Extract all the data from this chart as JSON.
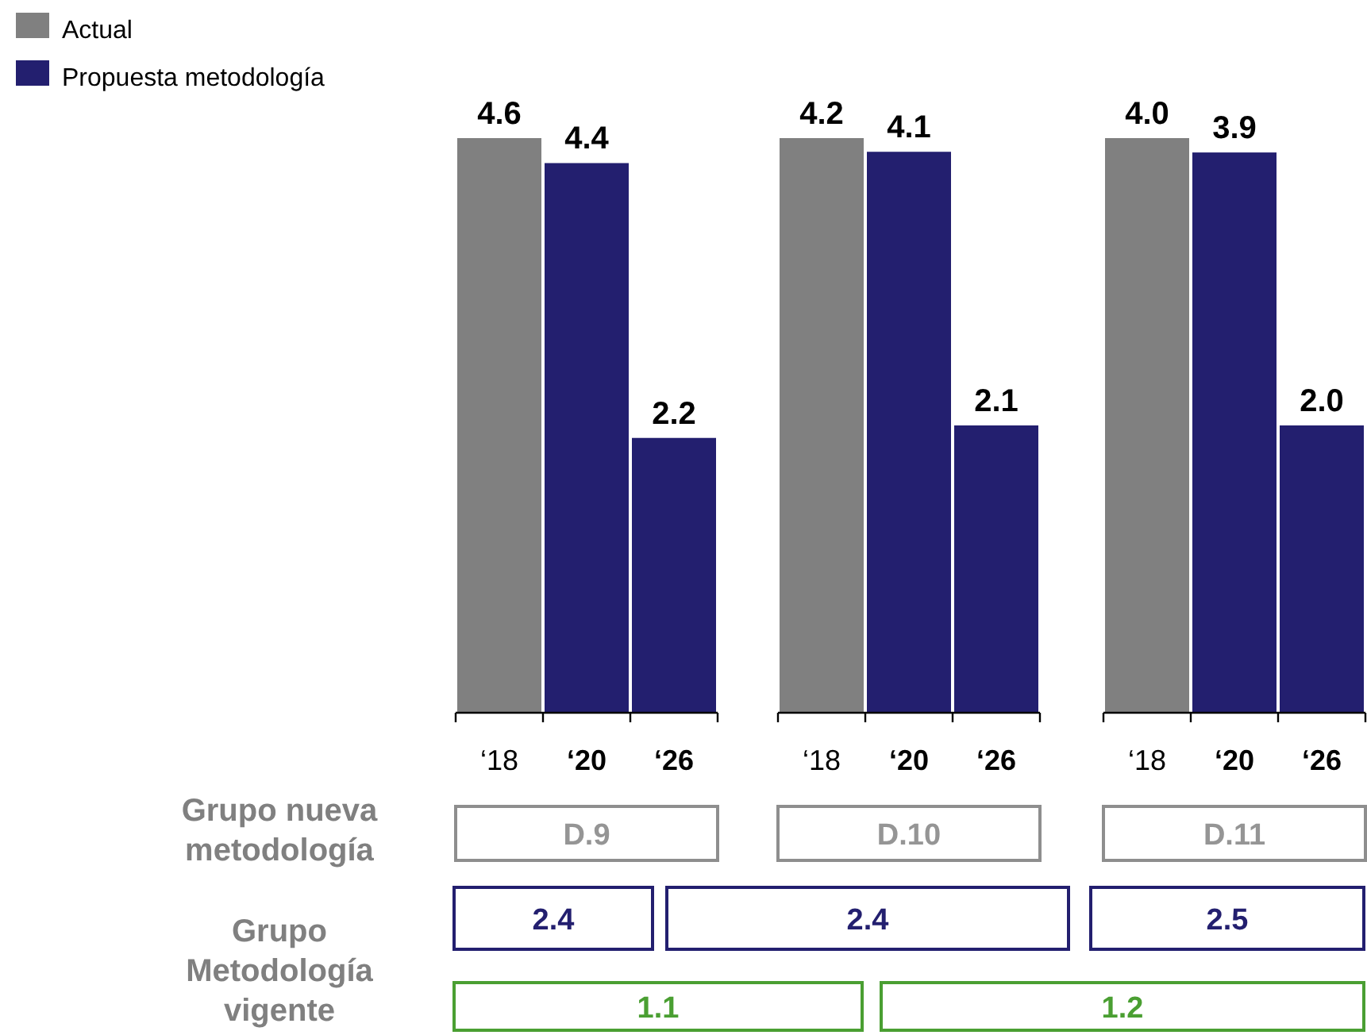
{
  "chart_data": [
    {
      "type": "bar",
      "categories": [
        "‘18",
        "‘20",
        "‘26"
      ],
      "series": [
        {
          "name": "Actual",
          "color": "#808080",
          "values": [
            4.6,
            null,
            null
          ]
        },
        {
          "name": "Propuesta metodología",
          "color": "#231f6f",
          "values": [
            null,
            4.4,
            2.2
          ]
        }
      ],
      "data_labels": true,
      "legend": "top left",
      "xlabel": "D.9"
    },
    {
      "type": "bar",
      "categories": [
        "‘18",
        "‘20",
        "‘26"
      ],
      "series": [
        {
          "color": "#808080",
          "values": [
            4.2,
            null,
            null
          ]
        },
        {
          "color": "#231f6f",
          "values": [
            null,
            4.1,
            2.1
          ]
        }
      ],
      "data_labels": true,
      "xlabel": "D.10"
    },
    {
      "type": "bar",
      "categories": [
        "‘18",
        "‘20",
        "‘26"
      ],
      "series": [
        {
          "color": "#808080",
          "values": [
            4.0,
            null,
            null
          ],
          "value_labels": [
            "4.0",
            null,
            null
          ]
        },
        {
          "color": "#231f6f",
          "values": [
            null,
            3.9,
            2.0
          ],
          "value_labels": [
            null,
            "3.9",
            "2.0"
          ]
        }
      ],
      "xlabel": "D.11"
    },
    {
      "type": "other",
      "annotations": [
        "Grupo nueva metodología",
        "Grupo Metodología vigente",
        "2.4",
        "2.4",
        "2.5",
        "1.1",
        "1.2"
      ],
      "colors": [
        "#808080",
        "#808080",
        "#231f6f",
        "#231f6f",
        "#231f6f",
        "#4a9f32",
        "#4a9f32"
      ]
    }
  ]
}
